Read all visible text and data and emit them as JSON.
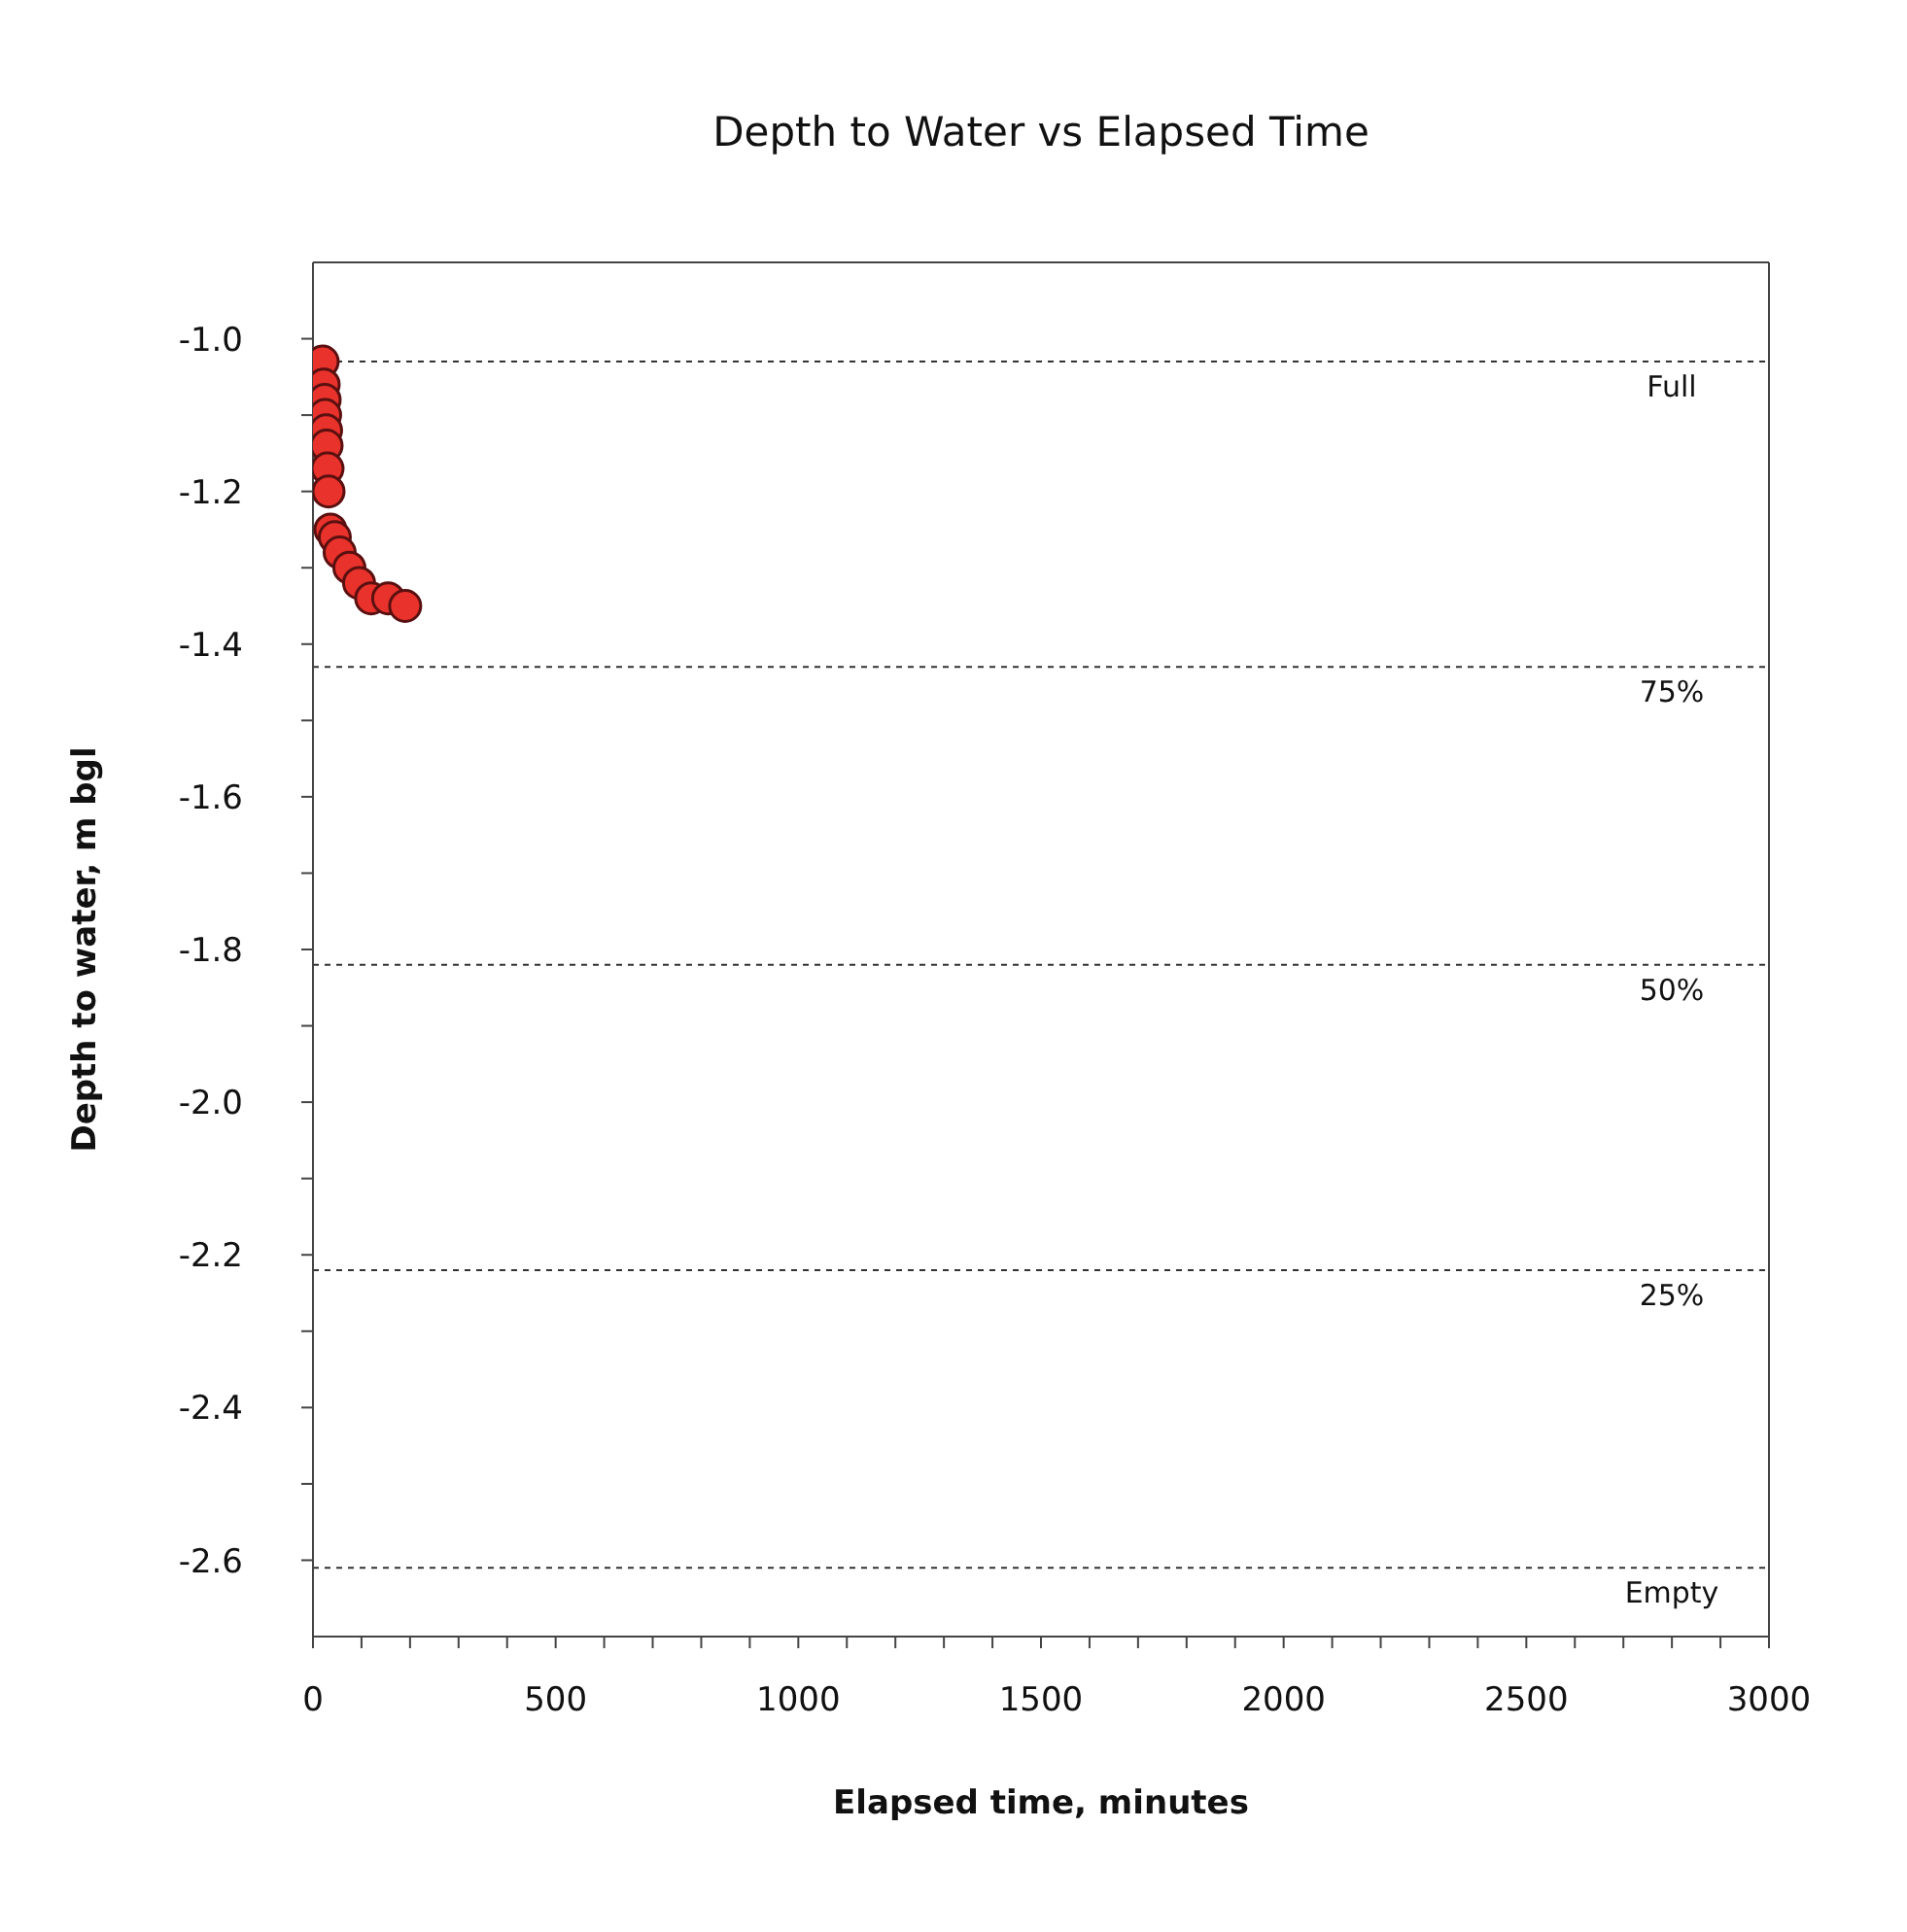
{
  "chart_data": {
    "type": "scatter",
    "title": "Depth to Water vs Elapsed Time",
    "xlabel": "Elapsed time, minutes",
    "ylabel": "Depth to water, m bgl",
    "x": [
      20,
      22,
      24,
      25,
      27,
      28,
      30,
      32,
      36,
      45,
      55,
      75,
      95,
      120,
      155,
      190
    ],
    "values": [
      -1.03,
      -1.06,
      -1.08,
      -1.1,
      -1.12,
      -1.14,
      -1.17,
      -1.2,
      -1.25,
      -1.26,
      -1.28,
      -1.3,
      -1.32,
      -1.34,
      -1.34,
      -1.35
    ],
    "color": "#e8322b",
    "marker": "circle",
    "grid": false,
    "legend": false,
    "xlim": [
      0,
      3000
    ],
    "xticks": [
      0,
      {
        "value": 100,
        "label": null
      },
      {
        "value": 200,
        "label": null
      },
      {
        "value": 300,
        "label": null
      },
      {
        "value": 400,
        "label": null
      },
      500,
      {
        "value": 600,
        "label": null
      },
      {
        "value": 700,
        "label": null
      },
      {
        "value": 800,
        "label": null
      },
      {
        "value": 900,
        "label": null
      },
      1000,
      {
        "value": 1100,
        "label": null
      },
      {
        "value": 1200,
        "label": null
      },
      {
        "value": 1300,
        "label": null
      },
      {
        "value": 1400,
        "label": null
      },
      1500,
      {
        "value": 1600,
        "label": null
      },
      {
        "value": 1700,
        "label": null
      },
      {
        "value": 1800,
        "label": null
      },
      {
        "value": 1900,
        "label": null
      },
      2000,
      {
        "value": 2100,
        "label": null
      },
      {
        "value": 2200,
        "label": null
      },
      {
        "value": 2300,
        "label": null
      },
      {
        "value": 2400,
        "label": null
      },
      2500,
      {
        "value": 2600,
        "label": null
      },
      {
        "value": 2700,
        "label": null
      },
      {
        "value": 2800,
        "label": null
      },
      {
        "value": 2900,
        "label": null
      },
      3000
    ],
    "ylim": [
      -2.7,
      -0.9
    ],
    "yticks": [
      {
        "value": -1.0,
        "label": "-1.0"
      },
      {
        "value": -1.1,
        "label": null
      },
      {
        "value": -1.2,
        "label": "-1.2"
      },
      {
        "value": -1.3,
        "label": null
      },
      {
        "value": -1.4,
        "label": "-1.4"
      },
      {
        "value": -1.5,
        "label": null
      },
      {
        "value": -1.6,
        "label": "-1.6"
      },
      {
        "value": -1.7,
        "label": null
      },
      {
        "value": -1.8,
        "label": "-1.8"
      },
      {
        "value": -1.9,
        "label": null
      },
      {
        "value": -2.0,
        "label": "-2.0"
      },
      {
        "value": -2.1,
        "label": null
      },
      {
        "value": -2.2,
        "label": "-2.2"
      },
      {
        "value": -2.3,
        "label": null
      },
      {
        "value": -2.4,
        "label": "-2.4"
      },
      {
        "value": -2.5,
        "label": null
      },
      {
        "value": -2.6,
        "label": "-2.6"
      }
    ],
    "ref_lines": [
      {
        "axis": "y",
        "value": -1.03,
        "line_style": "dashed",
        "color": "#333333"
      },
      {
        "axis": "y",
        "value": -1.43,
        "line_style": "dashed",
        "color": "#333333"
      },
      {
        "axis": "y",
        "value": -1.82,
        "line_style": "dashed",
        "color": "#333333"
      },
      {
        "axis": "y",
        "value": -2.22,
        "line_style": "dashed",
        "color": "#333333"
      },
      {
        "axis": "y",
        "value": -2.61,
        "line_style": "dashed",
        "color": "#333333"
      }
    ],
    "annotations": [
      {
        "text": "Full",
        "y": -1.03
      },
      {
        "text": "75%",
        "y": -1.43
      },
      {
        "text": "50%",
        "y": -1.82
      },
      {
        "text": "25%",
        "y": -2.22
      },
      {
        "text": "Empty",
        "y": -2.61
      }
    ]
  }
}
